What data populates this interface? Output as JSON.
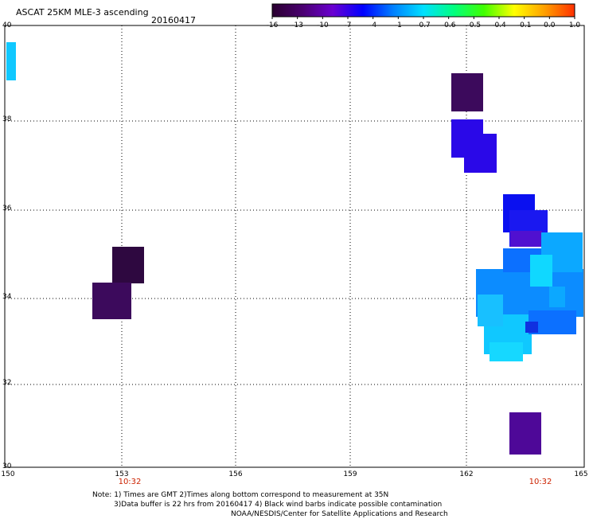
{
  "title": "ASCAT 25KM MLE-3 ascending",
  "date": "20160417",
  "colorbar": {
    "labels": [
      "-16",
      "-13",
      "-10",
      "-7",
      "-4",
      "-1",
      "-0.7",
      "-0.6",
      "-0.5",
      "-0.4",
      "-0.1",
      "0.0",
      "1.0"
    ],
    "colors": [
      "#2a0030",
      "#4a0070",
      "#6a00d0",
      "#0000ff",
      "#0080ff",
      "#00e0ff",
      "#00ff80",
      "#40ff00",
      "#ffff00",
      "#ffa000",
      "#ff3000"
    ]
  },
  "map": {
    "lon_range": [
      150,
      165
    ],
    "lat_range": [
      30,
      40
    ],
    "x_ticks": [
      "150",
      "153",
      "156",
      "159",
      "162",
      "165"
    ],
    "y_ticks": [
      "40",
      "38",
      "36",
      "34",
      "32",
      "30"
    ],
    "time_labels": [
      "10:32",
      "10:32"
    ]
  },
  "notes": {
    "line1": "Note: 1) Times are GMT 2)Times along bottom correspond to measurement at 35N",
    "line2": "3)Data buffer is 22 hrs from 20160417 4) Black wind barbs indicate possible contamination",
    "line3": "NOAA/NESDIS/Center for Satellite Applications and Research"
  }
}
